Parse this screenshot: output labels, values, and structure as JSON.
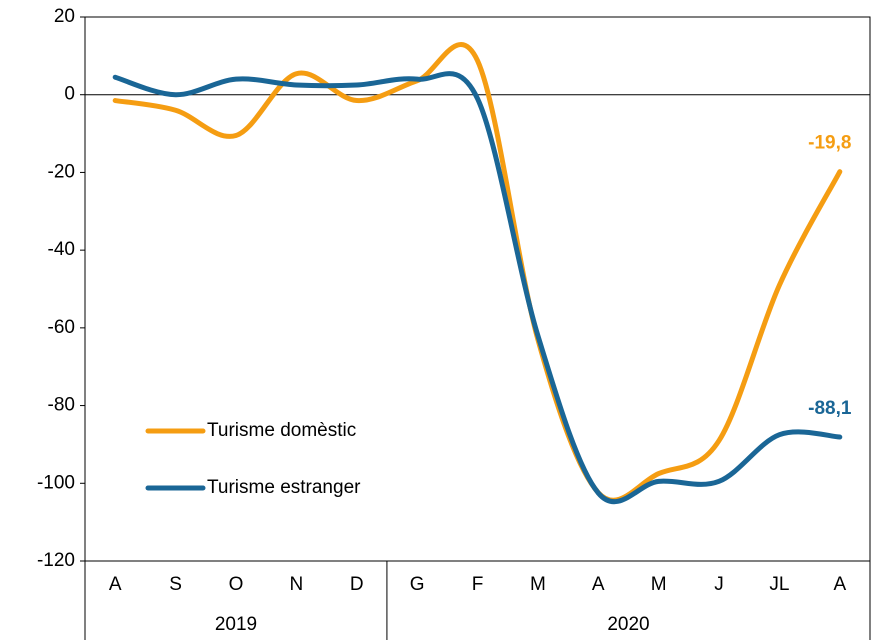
{
  "chart_data": {
    "type": "line",
    "categories": [
      "A",
      "S",
      "O",
      "N",
      "D",
      "G",
      "F",
      "M",
      "A",
      "M",
      "J",
      "JL",
      "A"
    ],
    "groups": [
      {
        "label": "2019",
        "count": 5
      },
      {
        "label": "2020",
        "count": 8
      }
    ],
    "series": [
      {
        "name": "Turisme domèstic",
        "color": "#f59d12",
        "values": [
          -1.5,
          -4,
          -10.5,
          5.4,
          -1.5,
          3.6,
          8.8,
          -63,
          -102.4,
          -97.5,
          -89,
          -49,
          -19.8
        ],
        "value_labels": [
          null,
          null,
          null,
          null,
          null,
          null,
          null,
          null,
          null,
          null,
          null,
          null,
          "-19,8"
        ]
      },
      {
        "name": "Turisme estranger",
        "color": "#1a6696",
        "values": [
          4.5,
          0,
          4,
          2.5,
          2.5,
          4,
          -1,
          -62,
          -102.5,
          -99.5,
          -99.5,
          -87.5,
          -88.1
        ],
        "value_labels": [
          null,
          null,
          null,
          null,
          null,
          null,
          null,
          null,
          null,
          null,
          null,
          null,
          "-88,1"
        ]
      }
    ],
    "ylim": [
      -120,
      20
    ],
    "yticks": [
      -120,
      -100,
      -80,
      -60,
      -40,
      -20,
      0,
      20
    ],
    "grid": false,
    "legend": "lower left"
  }
}
